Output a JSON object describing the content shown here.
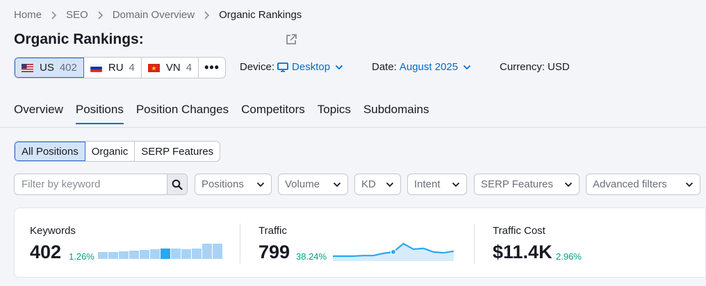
{
  "breadcrumb": [
    "Home",
    "SEO",
    "Domain Overview",
    "Organic Rankings"
  ],
  "page_title": "Organic Rankings:",
  "databases": [
    {
      "code": "US",
      "count": "402",
      "flag": "us-flag",
      "active": true
    },
    {
      "code": "RU",
      "count": "4",
      "flag": "ru-flag",
      "active": false
    },
    {
      "code": "VN",
      "count": "4",
      "flag": "vn-flag",
      "active": false
    }
  ],
  "more_label": "•••",
  "device": {
    "label": "Device:",
    "value": "Desktop",
    "icon": "monitor-icon"
  },
  "date": {
    "label": "Date:",
    "value": "August 2025"
  },
  "currency": {
    "label": "Currency:",
    "value": "USD"
  },
  "tabs": [
    "Overview",
    "Positions",
    "Position Changes",
    "Competitors",
    "Topics",
    "Subdomains"
  ],
  "active_tab": "Positions",
  "position_filters": [
    "All Positions",
    "Organic",
    "SERP Features"
  ],
  "search": {
    "placeholder": "Filter by keyword"
  },
  "dropdowns": [
    "Positions",
    "Volume",
    "KD",
    "Intent",
    "SERP Features",
    "Advanced filters"
  ],
  "metrics": {
    "keywords": {
      "label": "Keywords",
      "value": "402",
      "delta": "1.26%",
      "trend": [
        45,
        45,
        50,
        55,
        60,
        65,
        70,
        70,
        65,
        70,
        100,
        100
      ],
      "highlight_index": 6
    },
    "traffic": {
      "label": "Traffic",
      "value": "799",
      "delta": "38.24%",
      "trend": [
        10,
        10,
        10,
        12,
        12,
        20,
        25,
        55,
        35,
        38,
        25,
        22,
        28
      ]
    },
    "traffic_cost": {
      "label": "Traffic Cost",
      "value": "$11.4K",
      "delta": "2.96%"
    }
  },
  "colors": {
    "accent": "#006dca",
    "positive": "#009f81",
    "active_bg": "#d4e4f7"
  }
}
